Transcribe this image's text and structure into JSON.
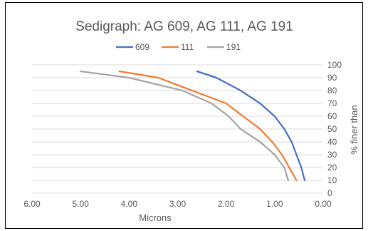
{
  "chart_data": {
    "type": "line",
    "title": "Sedigraph: AG 609, AG 111, AG 191",
    "xlabel": "Microns",
    "ylabel": "% finer than",
    "x_reversed": true,
    "xlim": [
      0,
      6
    ],
    "ylim": [
      0,
      100
    ],
    "x_ticks": [
      "6.00",
      "5.00",
      "4.00",
      "3.00",
      "2.00",
      "1.00",
      "0.00"
    ],
    "y_ticks": [
      "0",
      "10",
      "20",
      "30",
      "40",
      "50",
      "60",
      "70",
      "80",
      "90",
      "100"
    ],
    "y_axis_position": "right",
    "grid": true,
    "legend_position": "top",
    "series": [
      {
        "name": "609",
        "color": "#4472C4",
        "points": [
          [
            2.6,
            95
          ],
          [
            2.2,
            90
          ],
          [
            1.7,
            80
          ],
          [
            1.3,
            70
          ],
          [
            1.0,
            60
          ],
          [
            0.8,
            50
          ],
          [
            0.65,
            40
          ],
          [
            0.55,
            30
          ],
          [
            0.45,
            20
          ],
          [
            0.38,
            10
          ]
        ]
      },
      {
        "name": "111",
        "color": "#ED7D31",
        "points": [
          [
            4.2,
            95
          ],
          [
            3.4,
            90
          ],
          [
            2.7,
            80
          ],
          [
            2.0,
            70
          ],
          [
            1.65,
            60
          ],
          [
            1.3,
            50
          ],
          [
            1.05,
            40
          ],
          [
            0.85,
            30
          ],
          [
            0.7,
            20
          ],
          [
            0.55,
            10
          ]
        ]
      },
      {
        "name": "191",
        "color": "#A5A5A5",
        "points": [
          [
            5.0,
            95
          ],
          [
            4.0,
            90
          ],
          [
            2.9,
            80
          ],
          [
            2.3,
            70
          ],
          [
            1.95,
            60
          ],
          [
            1.7,
            50
          ],
          [
            1.3,
            40
          ],
          [
            1.0,
            30
          ],
          [
            0.8,
            20
          ],
          [
            0.72,
            10
          ]
        ]
      }
    ]
  }
}
